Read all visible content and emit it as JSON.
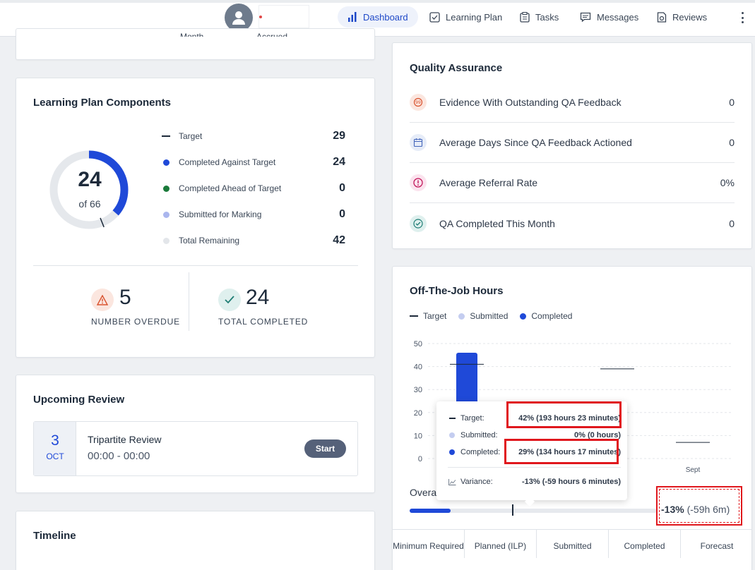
{
  "nav": {
    "items": [
      {
        "label": "Dashboard",
        "active": true
      },
      {
        "label": "Learning Plan"
      },
      {
        "label": "Tasks"
      },
      {
        "label": "Messages"
      },
      {
        "label": "Reviews"
      }
    ]
  },
  "top_card": {
    "col1": "Month",
    "col2": "Accrued"
  },
  "learning_plan": {
    "title": "Learning Plan Components",
    "donut": {
      "value": "24",
      "of_label": "of 66",
      "completed": 24,
      "total": 66
    },
    "rows": [
      {
        "label": "Target",
        "value": "29"
      },
      {
        "label": "Completed Against Target",
        "value": "24"
      },
      {
        "label": "Completed Ahead of Target",
        "value": "0"
      },
      {
        "label": "Submitted for Marking",
        "value": "0"
      },
      {
        "label": "Total Remaining",
        "value": "42"
      }
    ],
    "overdue": {
      "value": "5",
      "label": "NUMBER OVERDUE"
    },
    "completed": {
      "value": "24",
      "label": "TOTAL COMPLETED"
    }
  },
  "upcoming_review": {
    "title": "Upcoming Review",
    "day": "3",
    "month": "OCT",
    "name": "Tripartite Review",
    "time": "00:00 - 00:00",
    "start_label": "Start"
  },
  "timeline": {
    "title": "Timeline"
  },
  "qa": {
    "title": "Quality Assurance",
    "rows": [
      {
        "label": "Evidence With Outstanding QA Feedback",
        "value": "0"
      },
      {
        "label": "Average Days Since QA Feedback Actioned",
        "value": "0"
      },
      {
        "label": "Average Referral Rate",
        "value": "0%"
      },
      {
        "label": "QA Completed This Month",
        "value": "0"
      }
    ]
  },
  "otj": {
    "title": "Off-The-Job Hours",
    "legend": [
      "Target",
      "Submitted",
      "Completed"
    ],
    "overall_label": "Overa",
    "progress": {
      "completed_pct": 29,
      "target_pct": 42
    },
    "variance_pct": "-13%",
    "variance_hours": "(-59h 6m)",
    "tooltip": {
      "target_label": "Target:",
      "target_value": "42% (193 hours 23 minutes)",
      "submitted_label": "Submitted:",
      "submitted_value": "0% (0 hours)",
      "completed_label": "Completed:",
      "completed_value": "29% (134 hours 17 minutes)",
      "variance_label": "Variance:",
      "variance_value": "-13% (-59 hours 6 minutes)"
    },
    "footer": [
      "Minimum Required",
      "Planned (ILP)",
      "Submitted",
      "Completed",
      "Forecast"
    ]
  },
  "chart_data": {
    "type": "bar",
    "title": "Off-The-Job Hours",
    "categories": [
      "",
      "",
      "",
      "Sept"
    ],
    "ylim": [
      0,
      50
    ],
    "yticks": [
      0,
      10,
      20,
      30,
      40,
      50
    ],
    "series": [
      {
        "name": "Target",
        "values": [
          41,
          null,
          39,
          7
        ]
      },
      {
        "name": "Submitted",
        "values": [
          0,
          0,
          0,
          0
        ]
      },
      {
        "name": "Completed",
        "values": [
          46,
          null,
          null,
          null
        ]
      }
    ],
    "colors": {
      "target": "#1d2a3a",
      "submitted": "#b8c4ee",
      "completed": "#1f49d8"
    }
  },
  "colors": {
    "accent": "#1f49d8",
    "highlight": "#e0171d"
  }
}
